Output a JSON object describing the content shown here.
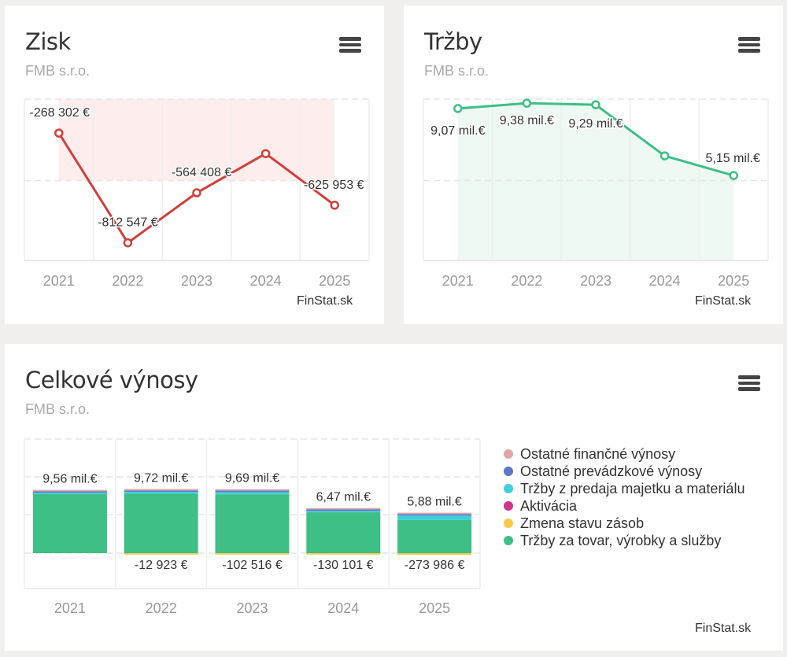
{
  "zisk": {
    "title": "Zisk",
    "subtitle": "FMB s.r.o.",
    "credit": "FinStat.sk",
    "chart_data": {
      "type": "line",
      "title": "Zisk",
      "subtitle": "FMB s.r.o.",
      "categories": [
        "2021",
        "2022",
        "2023",
        "2024",
        "2025"
      ],
      "values": [
        -268302,
        -812547,
        -564408,
        -370000,
        -625953
      ],
      "labels": [
        "-268 302 €",
        "-812 547 €",
        "-564 408 €",
        "",
        "-625 953 €"
      ],
      "ylim": [
        -900000,
        -100000
      ],
      "grid": true,
      "colors": {
        "line": "#d03f3a",
        "band": "#fdeded"
      }
    }
  },
  "trzby": {
    "title": "Tržby",
    "subtitle": "FMB s.r.o.",
    "credit": "FinStat.sk",
    "chart_data": {
      "type": "area",
      "title": "Tržby",
      "subtitle": "FMB s.r.o.",
      "categories": [
        "2021",
        "2022",
        "2023",
        "2024",
        "2025"
      ],
      "values": [
        9.07,
        9.38,
        9.29,
        6.3,
        5.15
      ],
      "labels": [
        "9,07 mil.€",
        "9,38 mil.€",
        "9,29 mil.€",
        "",
        "5,15 mil.€"
      ],
      "ylim": [
        0,
        10
      ],
      "grid": true,
      "colors": {
        "line": "#3dbf86",
        "fill": "#eef9f3"
      }
    }
  },
  "vynosy": {
    "title": "Celkové výnosy",
    "subtitle": "FMB s.r.o.",
    "credit": "FinStat.sk",
    "chart_data": {
      "type": "bar",
      "stacked": true,
      "title": "Celkové výnosy",
      "subtitle": "FMB s.r.o.",
      "categories": [
        "2021",
        "2022",
        "2023",
        "2024",
        "2025"
      ],
      "ylim": [
        -2.5,
        12.5
      ],
      "grid": true,
      "legend": "right",
      "series": [
        {
          "name": "Ostatné finančné výnosy",
          "color": "#e0a5a8",
          "values": [
            0.02,
            0.02,
            0.02,
            0.01,
            0.01
          ]
        },
        {
          "name": "Ostatné prevádzkové výnosy",
          "color": "#5b77c9",
          "values": [
            0.2,
            0.2,
            0.2,
            0.03,
            0.04
          ]
        },
        {
          "name": "Tržby z predaja majetku a materiálu",
          "color": "#3fd0d8",
          "values": [
            0.2,
            0.3,
            0.35,
            0.1,
            0.7
          ]
        },
        {
          "name": "Aktivácia",
          "color": "#d0338a",
          "values": [
            0,
            0,
            0,
            0,
            0
          ]
        },
        {
          "name": "Zmena stavu zásob",
          "color": "#f7c948",
          "values": [
            0,
            -0.013,
            -0.103,
            -0.13,
            -0.274
          ]
        },
        {
          "name": "Tržby za tovar, výrobky a služby",
          "color": "#3dbf86",
          "values": [
            9.14,
            9.2,
            9.12,
            6.33,
            5.13
          ]
        }
      ],
      "totals": [
        "9,56 mil.€",
        "9,72 mil.€",
        "9,69 mil.€",
        "6,47 mil.€",
        "5,88 mil.€"
      ],
      "negatives": [
        "",
        "-12 923 €",
        "-102 516 €",
        "-130 101 €",
        "-273 986 €"
      ]
    }
  }
}
